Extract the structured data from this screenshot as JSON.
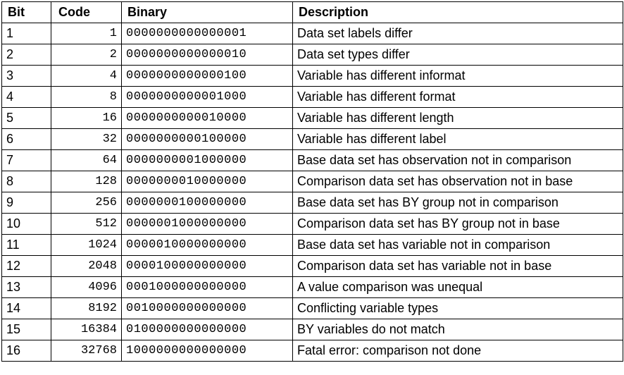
{
  "headers": {
    "bit": "Bit",
    "code": "Code",
    "binary": "Binary",
    "description": "Description"
  },
  "rows": [
    {
      "bit": "1",
      "code": "1",
      "binary": "0000000000000001",
      "description": "Data set labels differ"
    },
    {
      "bit": "2",
      "code": "2",
      "binary": "0000000000000010",
      "description": "Data set types differ"
    },
    {
      "bit": "3",
      "code": "4",
      "binary": "0000000000000100",
      "description": "Variable has different informat"
    },
    {
      "bit": "4",
      "code": "8",
      "binary": "0000000000001000",
      "description": "Variable has different format"
    },
    {
      "bit": "5",
      "code": "16",
      "binary": "0000000000010000",
      "description": "Variable has different length"
    },
    {
      "bit": "6",
      "code": "32",
      "binary": "0000000000100000",
      "description": "Variable has different label"
    },
    {
      "bit": "7",
      "code": "64",
      "binary": "0000000001000000",
      "description": "Base data set has observation not in comparison"
    },
    {
      "bit": "8",
      "code": "128",
      "binary": "0000000010000000",
      "description": "Comparison data set has observation not in base"
    },
    {
      "bit": "9",
      "code": "256",
      "binary": "0000000100000000",
      "description": "Base data set has BY group not in comparison"
    },
    {
      "bit": "10",
      "code": "512",
      "binary": "0000001000000000",
      "description": "Comparison data set has BY group not in base"
    },
    {
      "bit": "11",
      "code": "1024",
      "binary": "0000010000000000",
      "description": "Base data set has variable not in comparison"
    },
    {
      "bit": "12",
      "code": "2048",
      "binary": "0000100000000000",
      "description": "Comparison data set has variable not in base"
    },
    {
      "bit": "13",
      "code": "4096",
      "binary": "0001000000000000",
      "description": "A value comparison was unequal"
    },
    {
      "bit": "14",
      "code": "8192",
      "binary": "0010000000000000",
      "description": "Conflicting variable types"
    },
    {
      "bit": "15",
      "code": "16384",
      "binary": "0100000000000000",
      "description": "BY variables do not match"
    },
    {
      "bit": "16",
      "code": "32768",
      "binary": "1000000000000000",
      "description": "Fatal error: comparison not done"
    }
  ]
}
